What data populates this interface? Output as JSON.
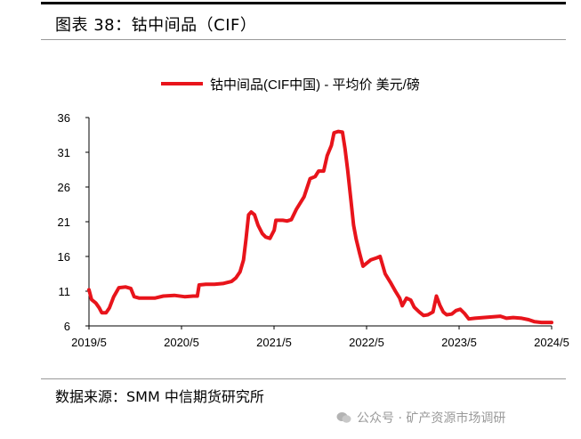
{
  "header": {
    "title": "图表 38：钴中间品（CIF）"
  },
  "footer": {
    "source": "数据来源：SMM 中信期货研究所",
    "watermark": "公众号 · 矿产资源市场调研"
  },
  "chart_data": {
    "type": "line",
    "title": "",
    "xlabel": "",
    "ylabel": "",
    "ylim": [
      6,
      36
    ],
    "yticks": [
      "6",
      "11",
      "16",
      "21",
      "26",
      "31",
      "36"
    ],
    "x_tick_labels": [
      "2019/5",
      "2020/5",
      "2021/5",
      "2022/5",
      "2023/5",
      "2024/5"
    ],
    "x_range": [
      2019.33,
      2024.75
    ],
    "legend": {
      "position": "top-center",
      "color": "#e8141b"
    },
    "series": [
      {
        "name": "钴中间品(CIF中国) - 平均价 美元/磅",
        "color": "#e8141b",
        "points": [
          [
            2019.33,
            11.2
          ],
          [
            2019.36,
            9.8
          ],
          [
            2019.41,
            9.3
          ],
          [
            2019.45,
            8.6
          ],
          [
            2019.48,
            7.9
          ],
          [
            2019.53,
            7.9
          ],
          [
            2019.57,
            8.6
          ],
          [
            2019.62,
            10.2
          ],
          [
            2019.68,
            11.5
          ],
          [
            2019.76,
            11.6
          ],
          [
            2019.82,
            11.4
          ],
          [
            2019.86,
            10.2
          ],
          [
            2019.92,
            10.0
          ],
          [
            2020.0,
            10.0
          ],
          [
            2020.1,
            10.0
          ],
          [
            2020.2,
            10.3
          ],
          [
            2020.33,
            10.4
          ],
          [
            2020.45,
            10.2
          ],
          [
            2020.55,
            10.3
          ],
          [
            2020.6,
            10.3
          ],
          [
            2020.62,
            11.9
          ],
          [
            2020.7,
            12.0
          ],
          [
            2020.8,
            12.0
          ],
          [
            2020.9,
            12.1
          ],
          [
            2021.0,
            12.4
          ],
          [
            2021.05,
            12.9
          ],
          [
            2021.1,
            13.8
          ],
          [
            2021.14,
            15.5
          ],
          [
            2021.17,
            18.5
          ],
          [
            2021.2,
            22.0
          ],
          [
            2021.23,
            22.4
          ],
          [
            2021.27,
            22.0
          ],
          [
            2021.31,
            20.5
          ],
          [
            2021.36,
            19.3
          ],
          [
            2021.4,
            18.8
          ],
          [
            2021.45,
            18.6
          ],
          [
            2021.5,
            19.8
          ],
          [
            2021.52,
            21.2
          ],
          [
            2021.6,
            21.2
          ],
          [
            2021.65,
            21.1
          ],
          [
            2021.7,
            21.3
          ],
          [
            2021.76,
            22.8
          ],
          [
            2021.85,
            24.6
          ],
          [
            2021.92,
            27.2
          ],
          [
            2021.98,
            27.5
          ],
          [
            2022.02,
            28.3
          ],
          [
            2022.08,
            28.3
          ],
          [
            2022.12,
            30.5
          ],
          [
            2022.17,
            32.0
          ],
          [
            2022.2,
            33.8
          ],
          [
            2022.25,
            34.0
          ],
          [
            2022.3,
            33.9
          ],
          [
            2022.33,
            31.5
          ],
          [
            2022.36,
            28.5
          ],
          [
            2022.4,
            24.0
          ],
          [
            2022.43,
            20.5
          ],
          [
            2022.46,
            18.5
          ],
          [
            2022.5,
            16.5
          ],
          [
            2022.54,
            14.6
          ],
          [
            2022.58,
            15.0
          ],
          [
            2022.63,
            15.5
          ],
          [
            2022.7,
            15.8
          ],
          [
            2022.74,
            16.0
          ],
          [
            2022.8,
            13.5
          ],
          [
            2022.86,
            12.3
          ],
          [
            2022.92,
            11.0
          ],
          [
            2022.97,
            10.0
          ],
          [
            2023.0,
            8.9
          ],
          [
            2023.05,
            10.0
          ],
          [
            2023.1,
            9.7
          ],
          [
            2023.14,
            8.7
          ],
          [
            2023.2,
            8.0
          ],
          [
            2023.25,
            7.5
          ],
          [
            2023.3,
            7.6
          ],
          [
            2023.36,
            8.0
          ],
          [
            2023.4,
            10.3
          ],
          [
            2023.44,
            9.0
          ],
          [
            2023.48,
            8.0
          ],
          [
            2023.52,
            7.6
          ],
          [
            2023.58,
            7.7
          ],
          [
            2023.63,
            8.2
          ],
          [
            2023.68,
            8.4
          ],
          [
            2023.73,
            7.8
          ],
          [
            2023.78,
            7.0
          ],
          [
            2023.85,
            7.1
          ],
          [
            2023.95,
            7.2
          ],
          [
            2024.05,
            7.3
          ],
          [
            2024.15,
            7.4
          ],
          [
            2024.22,
            7.1
          ],
          [
            2024.3,
            7.2
          ],
          [
            2024.4,
            7.1
          ],
          [
            2024.48,
            6.9
          ],
          [
            2024.55,
            6.6
          ],
          [
            2024.63,
            6.5
          ],
          [
            2024.7,
            6.5
          ],
          [
            2024.75,
            6.5
          ]
        ]
      }
    ]
  }
}
